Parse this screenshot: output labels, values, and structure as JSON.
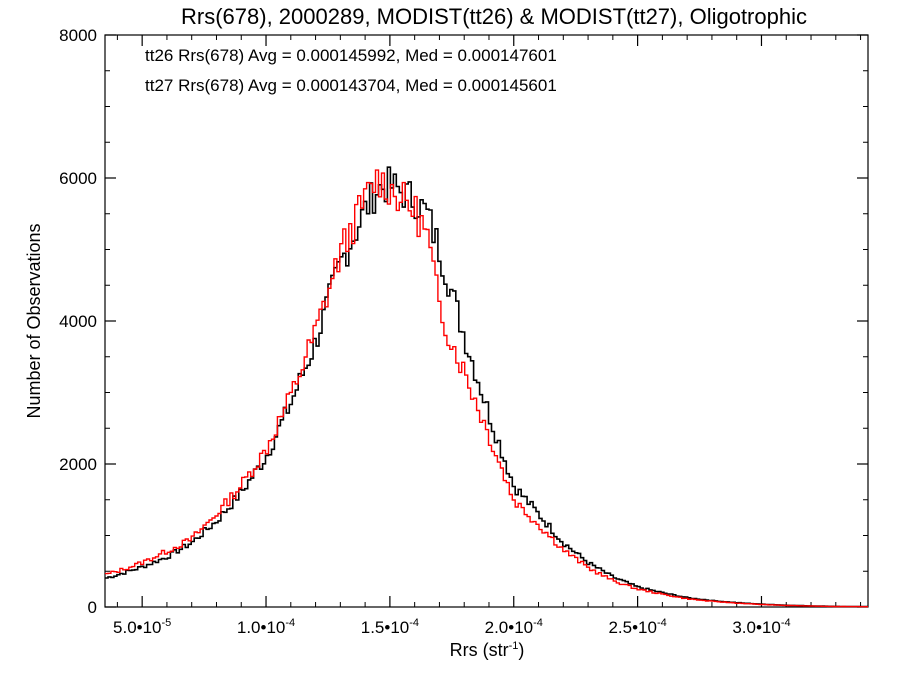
{
  "chart_data": {
    "type": "line",
    "title": "Rrs(678), 2000289, MODIST(tt26) & MODIST(tt27), Oligotrophic",
    "xlabel_main": "Rrs (str",
    "xlabel_sup": "-1",
    "xlabel_close": ")",
    "ylabel": "Number of Observations",
    "xlim": [
      3.5e-05,
      0.000343
    ],
    "ylim": [
      0,
      8000
    ],
    "x_ticks": [
      {
        "value": 5e-05,
        "label": "5.0•10",
        "exp": "-5"
      },
      {
        "value": 0.0001,
        "label": "1.0•10",
        "exp": "-4"
      },
      {
        "value": 0.00015,
        "label": "1.5•10",
        "exp": "-4"
      },
      {
        "value": 0.0002,
        "label": "2.0•10",
        "exp": "-4"
      },
      {
        "value": 0.00025,
        "label": "2.5•10",
        "exp": "-4"
      },
      {
        "value": 0.0003,
        "label": "3.0•10",
        "exp": "-4"
      }
    ],
    "y_ticks": [
      {
        "value": 0,
        "label": "0"
      },
      {
        "value": 2000,
        "label": "2000"
      },
      {
        "value": 4000,
        "label": "4000"
      },
      {
        "value": 6000,
        "label": "6000"
      },
      {
        "value": 8000,
        "label": "8000"
      }
    ],
    "annotations": [
      {
        "text": "tt26 Rrs(678) Avg = 0.000145992, Med = 0.000147601",
        "color": "#000000"
      },
      {
        "text": "tt27 Rrs(678) Avg = 0.000143704, Med = 0.000145601",
        "color": "#ff0000"
      }
    ],
    "grid": false,
    "series": [
      {
        "color": "#000000",
        "x": [
          3.5e-05,
          4e-05,
          5e-05,
          6e-05,
          7e-05,
          8e-05,
          9e-05,
          0.0001,
          0.00011,
          0.00012,
          0.00013,
          0.00014,
          0.000145,
          0.00015,
          0.000155,
          0.00016,
          0.000165,
          0.00017,
          0.000175,
          0.00018,
          0.00019,
          0.0002,
          0.00021,
          0.00022,
          0.00023,
          0.00024,
          0.00025,
          0.00026,
          0.00027,
          0.00028,
          0.00029,
          0.0003,
          0.00031,
          0.00032,
          0.00033,
          0.000343
        ],
        "y": [
          400,
          450,
          560,
          700,
          900,
          1200,
          1600,
          2100,
          2850,
          3700,
          4800,
          5550,
          5850,
          5900,
          5800,
          5700,
          5500,
          5000,
          4400,
          3800,
          2700,
          1700,
          1300,
          900,
          620,
          420,
          280,
          200,
          130,
          90,
          60,
          40,
          25,
          15,
          8,
          5
        ]
      },
      {
        "color": "#ff0000",
        "x": [
          3.5e-05,
          4e-05,
          5e-05,
          6e-05,
          7e-05,
          8e-05,
          9e-05,
          0.0001,
          0.00011,
          0.00012,
          0.00013,
          0.00014,
          0.000145,
          0.00015,
          0.000155,
          0.00016,
          0.000165,
          0.00017,
          0.000175,
          0.00018,
          0.00019,
          0.0002,
          0.00021,
          0.00022,
          0.00023,
          0.00024,
          0.00025,
          0.00026,
          0.00027,
          0.00028,
          0.00029,
          0.0003,
          0.00031,
          0.00032,
          0.00033,
          0.000343
        ],
        "y": [
          450,
          500,
          620,
          780,
          950,
          1300,
          1700,
          2200,
          2950,
          3850,
          4950,
          5700,
          6000,
          5850,
          5700,
          5550,
          5200,
          4200,
          3700,
          3300,
          2400,
          1500,
          1150,
          800,
          550,
          370,
          250,
          180,
          115,
          80,
          55,
          35,
          22,
          13,
          7,
          4
        ]
      }
    ]
  }
}
